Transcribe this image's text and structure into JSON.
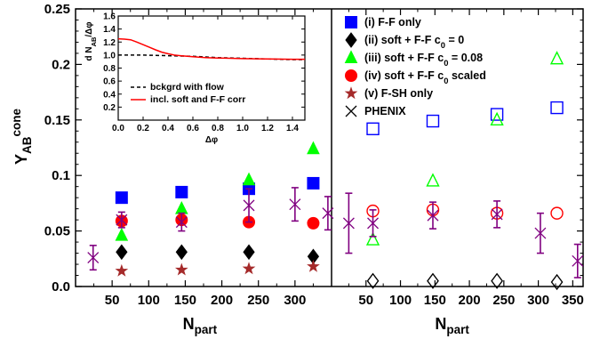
{
  "chart_data": {
    "type": "scatter",
    "ylabel": {
      "main": "Y",
      "sub": "AB",
      "sup": "cone"
    },
    "xlabel": {
      "main": "N",
      "sub": "part"
    },
    "ylim": [
      0,
      0.25
    ],
    "yticks": [
      "0.0",
      "0.05",
      "0.1",
      "0.15",
      "0.2",
      "0.25"
    ],
    "yticks_values": [
      0,
      0.05,
      0.1,
      0.15,
      0.2,
      0.25
    ],
    "panels": [
      {
        "name": "left",
        "xlim": [
          0,
          350
        ],
        "xticks": [
          "50",
          "100",
          "150",
          "200",
          "250",
          "300"
        ],
        "xticks_values": [
          50,
          100,
          150,
          200,
          250,
          300
        ]
      },
      {
        "name": "right",
        "xlim": [
          0,
          365
        ],
        "xticks": [
          "50",
          "100",
          "150",
          "200",
          "250",
          "300",
          "350"
        ],
        "xticks_values": [
          50,
          100,
          150,
          200,
          250,
          300,
          350
        ]
      }
    ],
    "legend": {
      "placement": "top-right",
      "entries": [
        {
          "label": "(i) F-F only",
          "marker": "square",
          "color": "#0000ff"
        },
        {
          "label": "(ii) soft + F-F c",
          "sub": "0",
          "suffix": " = 0",
          "marker": "diamond",
          "color": "#000000"
        },
        {
          "label": "(iii) soft + F-F c",
          "sub": "0",
          "suffix": " = 0.08",
          "marker": "triangle",
          "color": "#00ff00"
        },
        {
          "label": "(iv) soft + F-F c",
          "sub": "0",
          "suffix": " scaled",
          "marker": "circle",
          "color": "#ff0000"
        },
        {
          "label": "(v) F-SH only",
          "marker": "star",
          "color": "#a52a2a"
        },
        {
          "label": "PHENIX",
          "marker": "cross",
          "color": "#000000"
        }
      ]
    },
    "series": [
      {
        "id": "i",
        "panel": "left",
        "marker": "square",
        "color": "#0000ff",
        "filled": true,
        "x": [
          63,
          145,
          237,
          325
        ],
        "y": [
          0.08,
          0.085,
          0.088,
          0.093
        ]
      },
      {
        "id": "ii",
        "panel": "left",
        "marker": "diamond",
        "color": "#000000",
        "filled": true,
        "x": [
          63,
          145,
          237,
          325
        ],
        "y": [
          0.031,
          0.031,
          0.031,
          0.027
        ]
      },
      {
        "id": "iii",
        "panel": "left",
        "marker": "triangle",
        "color": "#00ff00",
        "filled": true,
        "x": [
          63,
          145,
          237,
          325
        ],
        "y": [
          0.046,
          0.07,
          0.096,
          0.124
        ]
      },
      {
        "id": "iv",
        "panel": "left",
        "marker": "circle",
        "color": "#ff0000",
        "filled": true,
        "x": [
          63,
          145,
          237,
          325
        ],
        "y": [
          0.059,
          0.06,
          0.058,
          0.057
        ]
      },
      {
        "id": "v",
        "panel": "left",
        "marker": "star",
        "color": "#a52a2a",
        "filled": true,
        "x": [
          63,
          145,
          237,
          325
        ],
        "y": [
          0.014,
          0.015,
          0.016,
          0.018
        ]
      },
      {
        "id": "phenix-left",
        "panel": "left",
        "marker": "cross",
        "color": "#800080",
        "errorbars": true,
        "x": [
          24,
          63,
          145,
          237,
          300,
          345
        ],
        "y": [
          0.026,
          0.06,
          0.058,
          0.073,
          0.074,
          0.066
        ],
        "err": [
          0.011,
          0.007,
          0.008,
          0.015,
          0.015,
          0.015
        ]
      },
      {
        "id": "i-right",
        "panel": "right",
        "marker": "square",
        "color": "#0000ff",
        "filled": false,
        "x": [
          60,
          147,
          240,
          327
        ],
        "y": [
          0.142,
          0.149,
          0.155,
          0.161
        ]
      },
      {
        "id": "ii-right",
        "panel": "right",
        "marker": "diamond",
        "color": "#000000",
        "filled": false,
        "x": [
          60,
          147,
          240,
          327
        ],
        "y": [
          0.005,
          0.005,
          0.005,
          0.004
        ]
      },
      {
        "id": "iii-right",
        "panel": "right",
        "marker": "triangle",
        "color": "#00ff00",
        "filled": false,
        "x": [
          60,
          147,
          240,
          327
        ],
        "y": [
          0.042,
          0.095,
          0.15,
          0.205
        ]
      },
      {
        "id": "iv-right",
        "panel": "right",
        "marker": "circle",
        "color": "#ff0000",
        "filled": false,
        "x": [
          60,
          147,
          240,
          327
        ],
        "y": [
          0.068,
          0.069,
          0.066,
          0.066
        ]
      },
      {
        "id": "phenix-right",
        "panel": "right",
        "marker": "cross",
        "color": "#800080",
        "errorbars": true,
        "x": [
          25,
          60,
          147,
          240,
          303,
          357
        ],
        "y": [
          0.057,
          0.057,
          0.064,
          0.065,
          0.048,
          0.023
        ],
        "err": [
          0.027,
          0.012,
          0.012,
          0.012,
          0.018,
          0.015
        ]
      }
    ],
    "inset": {
      "xlabel": "Δφ",
      "ylabel": {
        "prefix": "d N",
        "sub": "AB",
        "suffix": "/Δφ"
      },
      "xlim": [
        0,
        1.5
      ],
      "ylim": [
        0,
        1.6
      ],
      "xticks": [
        "0.0",
        "0.2",
        "0.4",
        "0.6",
        "0.8",
        "1.0",
        "1.2",
        "1.4"
      ],
      "xticks_values": [
        0,
        0.2,
        0.4,
        0.6,
        0.8,
        1.0,
        1.2,
        1.4
      ],
      "yticks": [
        "0.2",
        "0.4",
        "0.6",
        "0.8",
        "1.0",
        "1.2",
        "1.4",
        "1.6"
      ],
      "yticks_values": [
        0.2,
        0.4,
        0.6,
        0.8,
        1.0,
        1.2,
        1.4,
        1.6
      ],
      "legend": [
        {
          "label": "bckgrd with flow",
          "style": "dashed",
          "color": "#000000"
        },
        {
          "label": "incl. soft and F-F corr",
          "style": "solid",
          "color": "#ff0000"
        }
      ],
      "series": [
        {
          "name": "bckgrd with flow",
          "color": "#000000",
          "dashed": true,
          "x": [
            0,
            0.2,
            0.4,
            0.6,
            0.8,
            1.0,
            1.2,
            1.4,
            1.5
          ],
          "y": [
            1.0,
            1.0,
            0.99,
            0.98,
            0.96,
            0.95,
            0.94,
            0.93,
            0.93
          ]
        },
        {
          "name": "incl. soft and F-F corr",
          "color": "#ff0000",
          "dashed": false,
          "x": [
            0,
            0.05,
            0.1,
            0.15,
            0.2,
            0.25,
            0.3,
            0.35,
            0.4,
            0.45,
            0.5,
            0.6,
            0.7,
            0.8,
            0.9,
            1.0,
            1.2,
            1.4,
            1.5
          ],
          "y": [
            1.25,
            1.245,
            1.235,
            1.2,
            1.16,
            1.12,
            1.08,
            1.045,
            1.02,
            1.0,
            0.99,
            0.975,
            0.96,
            0.955,
            0.95,
            0.945,
            0.94,
            0.935,
            0.935
          ]
        }
      ]
    }
  }
}
